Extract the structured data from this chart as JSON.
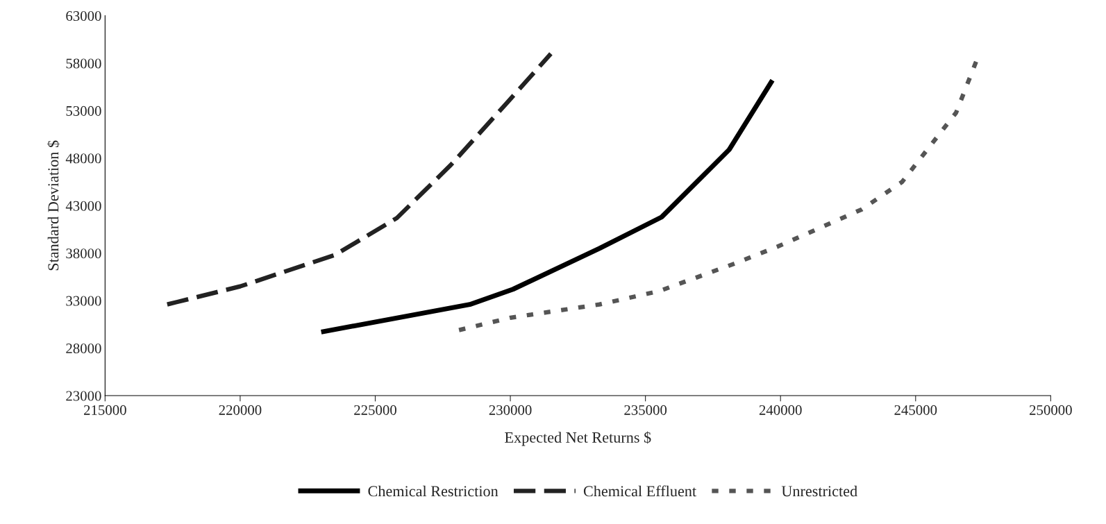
{
  "chart_data": {
    "type": "line",
    "xlabel": "Expected Net Returns $",
    "ylabel": "Standard Deviation $",
    "xlim": [
      215000,
      250000
    ],
    "xticks": [
      215000,
      220000,
      225000,
      230000,
      235000,
      240000,
      245000,
      250000
    ],
    "ylim": [
      23000,
      63000
    ],
    "yticks": [
      23000,
      28000,
      33000,
      38000,
      43000,
      48000,
      53000,
      58000,
      63000
    ],
    "grid": false,
    "legend": "bottom",
    "marker": "none",
    "series": [
      {
        "name": "Chemical Restriction",
        "color": "#000000",
        "line_style": "solid",
        "x": [
          223000,
          228500,
          230100,
          233300,
          235600,
          238100,
          239700
        ],
        "values": [
          29700,
          32600,
          34200,
          38500,
          41800,
          48900,
          56200
        ]
      },
      {
        "name": "Chemical Effluent",
        "color": "#222222",
        "line_style": "dashed",
        "x": [
          217300,
          220000,
          223500,
          225800,
          227800,
          229900,
          231500
        ],
        "values": [
          32600,
          34500,
          37800,
          41700,
          47300,
          53900,
          59000
        ]
      },
      {
        "name": "Unrestricted",
        "color": "#555555",
        "line_style": "dotted",
        "x": [
          228100,
          230000,
          233300,
          235500,
          238300,
          239900,
          243000,
          244500,
          246500,
          247300
        ],
        "values": [
          29900,
          31200,
          32600,
          34000,
          36900,
          38700,
          42600,
          45500,
          52800,
          58600
        ]
      }
    ]
  }
}
